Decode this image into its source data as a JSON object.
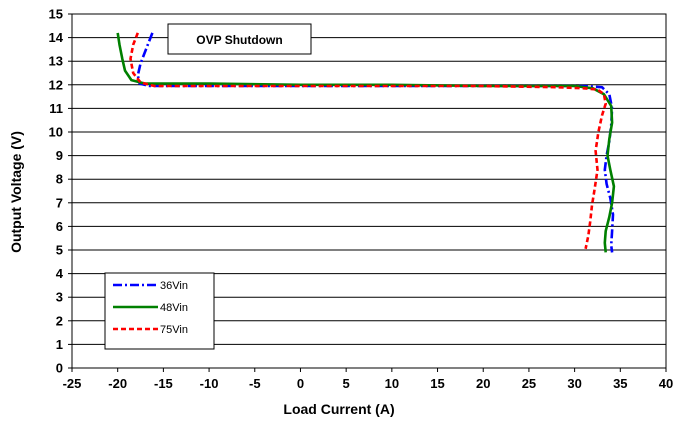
{
  "chart_data": {
    "type": "line",
    "title": "",
    "xlabel": "Load Current (A)",
    "ylabel": "Output Voltage (V)",
    "xlim": [
      -25,
      40
    ],
    "ylim": [
      0,
      15
    ],
    "x_ticks": [
      -25,
      -20,
      -15,
      -10,
      -5,
      0,
      5,
      10,
      15,
      20,
      25,
      30,
      35,
      40
    ],
    "y_ticks": [
      0,
      1,
      2,
      3,
      4,
      5,
      6,
      7,
      8,
      9,
      10,
      11,
      12,
      13,
      14,
      15
    ],
    "grid": "horizontal",
    "legend_position": "bottom-left",
    "annotation": "OVP Shutdown",
    "series": [
      {
        "name": "36Vin",
        "color": "#0000ff",
        "dash": "dash-dot",
        "points": [
          [
            -16.2,
            14.2
          ],
          [
            -16.8,
            13.6
          ],
          [
            -17.5,
            12.9
          ],
          [
            -17.8,
            12.4
          ],
          [
            -17.6,
            12.05
          ],
          [
            -16.5,
            11.95
          ],
          [
            -14,
            11.95
          ],
          [
            -5,
            11.95
          ],
          [
            10,
            11.95
          ],
          [
            25,
            11.95
          ],
          [
            31,
            11.95
          ],
          [
            33,
            11.9
          ],
          [
            33.8,
            11.6
          ],
          [
            34.1,
            11.0
          ],
          [
            34.0,
            10.3
          ],
          [
            33.8,
            9.6
          ],
          [
            33.5,
            9.0
          ],
          [
            33.3,
            8.4
          ],
          [
            33.5,
            7.8
          ],
          [
            33.9,
            7.2
          ],
          [
            34.2,
            6.5
          ],
          [
            34.1,
            5.8
          ],
          [
            34.0,
            5.2
          ],
          [
            34.1,
            4.9
          ]
        ]
      },
      {
        "name": "48Vin",
        "color": "#008000",
        "dash": "solid",
        "points": [
          [
            -20.0,
            14.2
          ],
          [
            -19.8,
            13.7
          ],
          [
            -19.5,
            13.1
          ],
          [
            -19.2,
            12.6
          ],
          [
            -18.5,
            12.2
          ],
          [
            -17.0,
            12.05
          ],
          [
            -15,
            12.05
          ],
          [
            -10,
            12.05
          ],
          [
            0,
            12.0
          ],
          [
            10,
            12.0
          ],
          [
            20,
            11.95
          ],
          [
            30,
            11.95
          ],
          [
            32,
            11.85
          ],
          [
            33.2,
            11.6
          ],
          [
            34.0,
            11.1
          ],
          [
            34.1,
            10.4
          ],
          [
            33.8,
            9.7
          ],
          [
            33.6,
            9.0
          ],
          [
            33.9,
            8.4
          ],
          [
            34.3,
            7.7
          ],
          [
            34.1,
            7.0
          ],
          [
            33.8,
            6.4
          ],
          [
            33.4,
            5.8
          ],
          [
            33.3,
            5.3
          ],
          [
            33.4,
            4.9
          ]
        ]
      },
      {
        "name": "75Vin",
        "color": "#ff0000",
        "dash": "dashed",
        "points": [
          [
            -17.8,
            14.2
          ],
          [
            -18.3,
            13.7
          ],
          [
            -18.6,
            13.1
          ],
          [
            -18.3,
            12.5
          ],
          [
            -17.5,
            12.1
          ],
          [
            -16,
            11.95
          ],
          [
            -10,
            11.95
          ],
          [
            0,
            11.95
          ],
          [
            10,
            11.95
          ],
          [
            20,
            11.95
          ],
          [
            28,
            11.9
          ],
          [
            31,
            11.85
          ],
          [
            32.5,
            11.8
          ],
          [
            33.2,
            11.6
          ],
          [
            33.4,
            11.2
          ],
          [
            33.0,
            10.7
          ],
          [
            32.6,
            10.0
          ],
          [
            32.3,
            9.2
          ],
          [
            32.5,
            8.4
          ],
          [
            32.2,
            7.6
          ],
          [
            31.9,
            6.9
          ],
          [
            31.7,
            6.2
          ],
          [
            31.5,
            5.6
          ],
          [
            31.2,
            5.05
          ]
        ]
      }
    ]
  }
}
